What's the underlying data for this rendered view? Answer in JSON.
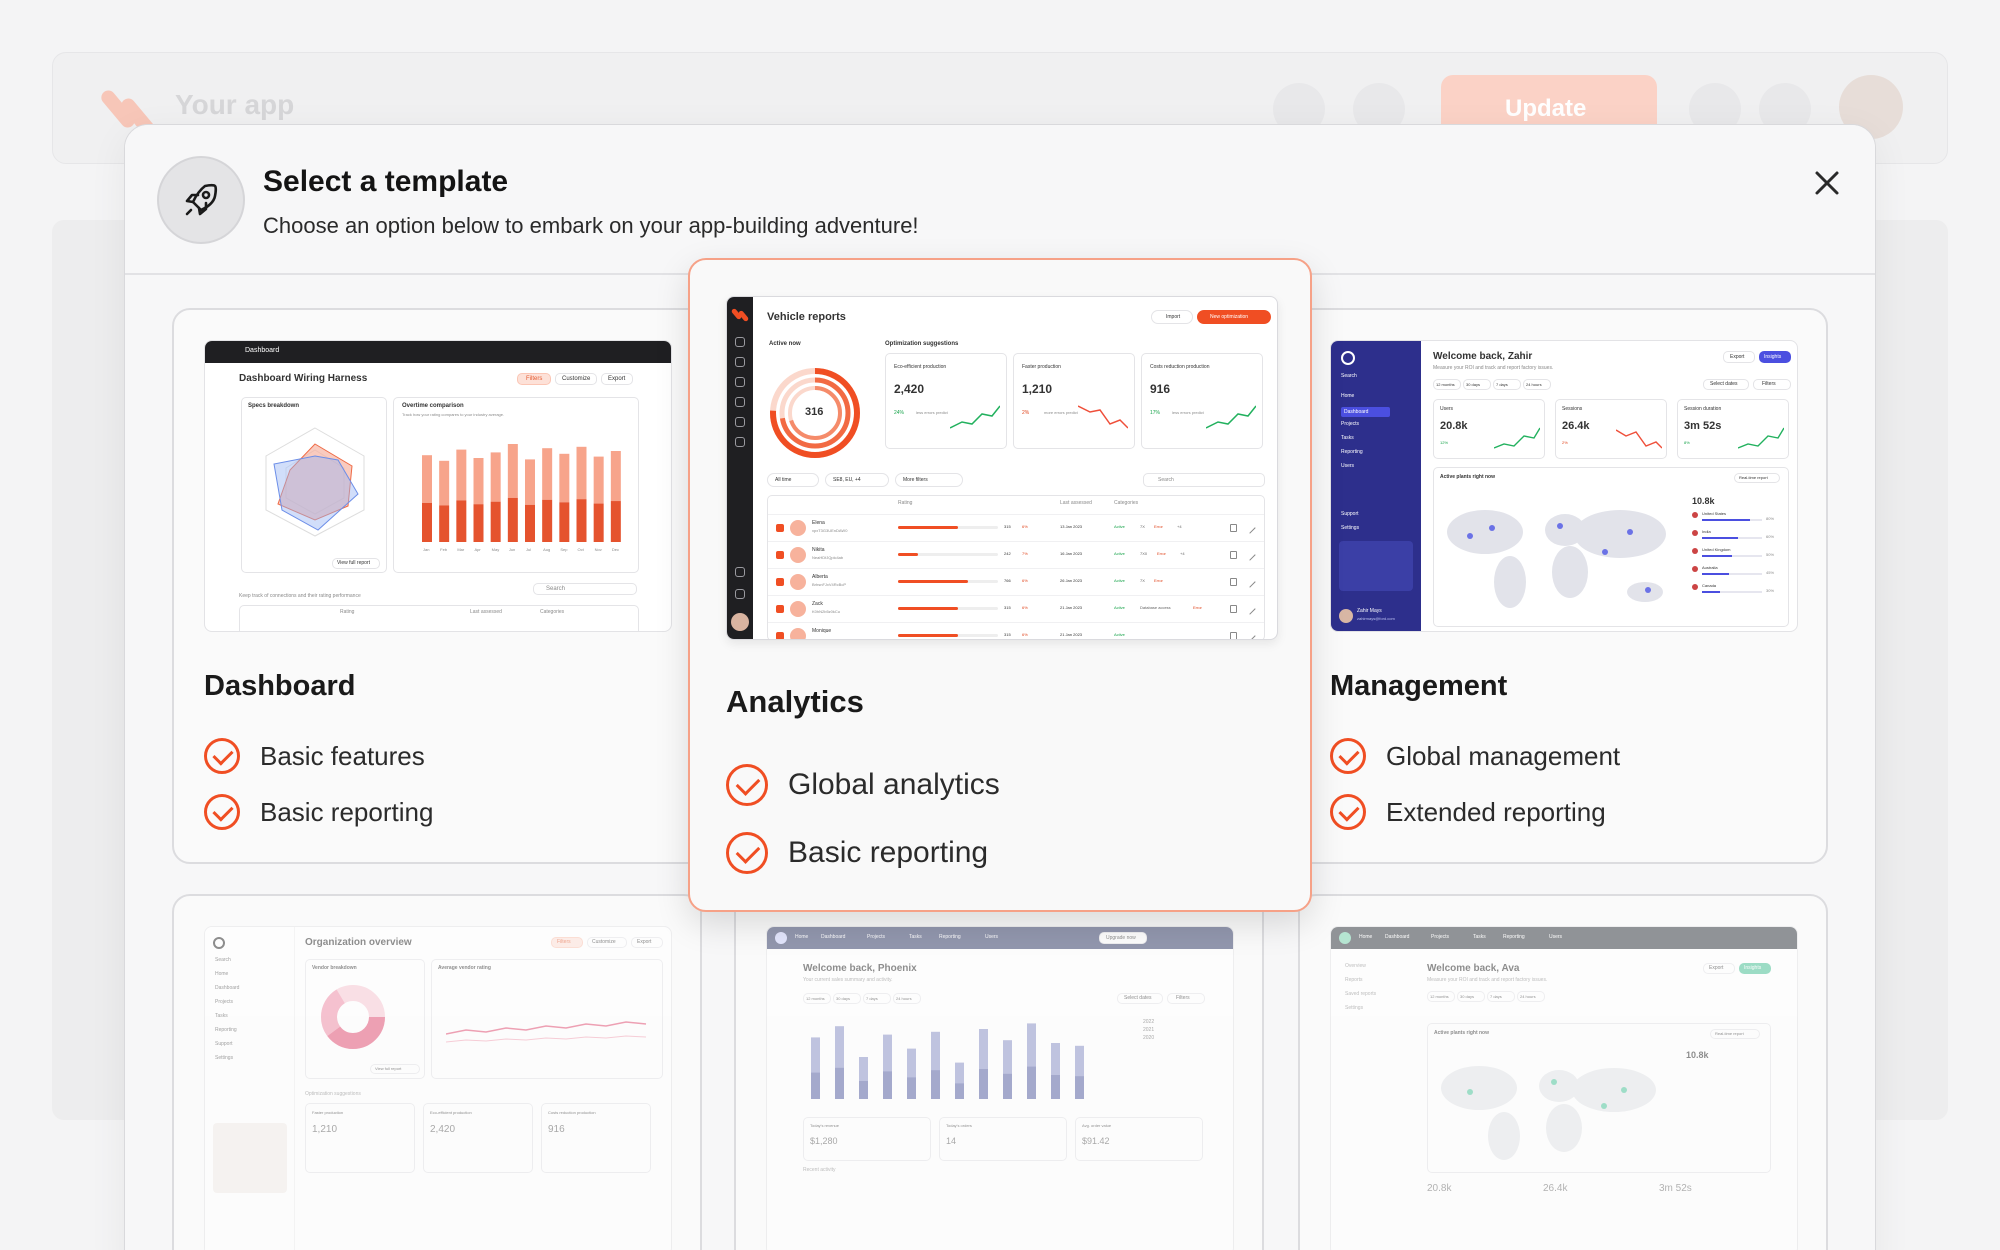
{
  "background": {
    "app_name": "Your app",
    "update_label": "Update"
  },
  "modal": {
    "title": "Select a template",
    "subtitle": "Choose an option below to embark on your app-building adventure!"
  },
  "templates": [
    {
      "name": "Dashboard",
      "features": [
        "Basic features",
        "Basic reporting"
      ],
      "preview": {
        "window_title": "Dashboard",
        "page_title": "Dashboard Wiring Harness",
        "filter_labels": [
          "Filters",
          "Customize",
          "Export"
        ],
        "panel_left": "Specs breakdown",
        "panel_right": "Overtime comparison",
        "panel_right_sub": "Track how your rating compares to your industry average.",
        "legend": [
          "Your rating",
          "Industry Average"
        ],
        "bar_values": [
          62,
          58,
          66,
          60,
          64,
          70,
          59,
          67,
          63,
          68,
          61,
          65
        ],
        "months": [
          "Jan",
          "Feb",
          "Mar",
          "Apr",
          "May",
          "Jun",
          "Jul",
          "Aug",
          "Sep",
          "Oct",
          "Nov",
          "Dec"
        ],
        "x_title": "Month",
        "y_title": "Security rating",
        "tier_labels": [
          "Tier 1",
          "Tier 2",
          "Tier 3",
          "Tier 4",
          "Tier 5",
          "Tier 6"
        ],
        "view_full_report": "View full report",
        "table_caption": "Keep track of connections and their rating performance",
        "search": "Search",
        "table_headers": [
          "Rating",
          "Last assessed",
          "Categories"
        ]
      }
    },
    {
      "name": "Analytics",
      "features": [
        "Global analytics",
        "Basic reporting"
      ],
      "selected": true,
      "preview": {
        "page_title": "Vehicle reports",
        "import_label": "Import",
        "new_label": "New optimization",
        "active_now_label": "Active now",
        "active_now_value": "316",
        "suggestions_label": "Optimization suggestions",
        "kpis": [
          {
            "label": "Eco-efficient production",
            "value": "2,420",
            "delta": "24%",
            "note": "less errors predict"
          },
          {
            "label": "Faster production",
            "value": "1,210",
            "delta": "2%",
            "note": "more errors predict"
          },
          {
            "label": "Costs reduction production",
            "value": "916",
            "delta": "17%",
            "note": "less errors predict"
          }
        ],
        "chips": [
          "All time",
          "SE8, EU, +4",
          "More filters"
        ],
        "search": "Search",
        "columns": [
          "Rating",
          "Last assessed",
          "Categories"
        ],
        "rows": [
          {
            "name": "Elena",
            "id": "xpxT3G3UEnDAW0",
            "score": "315",
            "delta": "6%",
            "date": "13 Jan 2023",
            "tags": [
              "Active",
              "7X",
              "Error",
              "+4"
            ]
          },
          {
            "name": "Nikita",
            "id": "NeaHDfJQplc4ab",
            "score": "242",
            "delta": "7%",
            "date": "16 Jan 2023",
            "tags": [
              "Active",
              "7X0",
              "Error",
              "+4"
            ]
          },
          {
            "name": "Alberta",
            "id": "BrhsnFJxV4RcBcP",
            "score": "766",
            "delta": "6%",
            "date": "26 Jan 2023",
            "tags": [
              "Active",
              "7X",
              "Error"
            ]
          },
          {
            "name": "Zack",
            "id": "K0hN2b5z0kCu",
            "score": "315",
            "delta": "6%",
            "date": "21 Jan 2023",
            "tags": [
              "Active",
              "Database access",
              "Error"
            ]
          },
          {
            "name": "Monique",
            "id": "",
            "score": "315",
            "delta": "6%",
            "date": "21 Jan 2023",
            "tags": [
              "Active"
            ]
          }
        ]
      }
    },
    {
      "name": "Management",
      "features": [
        "Global management",
        "Extended reporting"
      ],
      "preview": {
        "greeting": "Welcome back, Zahir",
        "sub": "Measure your ROI and track and report factory issues.",
        "export_label": "Export",
        "insights_label": "Insights",
        "ranges": [
          "12 months",
          "30 days",
          "7 days",
          "24 hours"
        ],
        "select_dates": "Select dates",
        "filters": "Filters",
        "nav": [
          "Search",
          "Home",
          "Dashboard",
          "Projects",
          "Tasks",
          "Reporting",
          "Users",
          "Support",
          "Settings"
        ],
        "kpis": [
          {
            "label": "Users",
            "value": "20.8k",
            "delta": "12%"
          },
          {
            "label": "Sessions",
            "value": "26.4k",
            "delta": "2%"
          },
          {
            "label": "Session duration",
            "value": "3m 52s",
            "delta": "8%"
          }
        ],
        "map_title": "Active plants right now",
        "map_button": "Real-time report",
        "map_total": "10.8k",
        "countries": [
          {
            "name": "United States",
            "pct": 80
          },
          {
            "name": "India",
            "pct": 60
          },
          {
            "name": "United Kingdom",
            "pct": 50
          },
          {
            "name": "Australia",
            "pct": 45
          },
          {
            "name": "Canada",
            "pct": 30
          }
        ],
        "user_name": "Zahir Mays",
        "user_email": "zahirmays@ford.com"
      }
    },
    {
      "name": "Organization overview",
      "preview": {
        "page_title": "Organization overview",
        "filter_labels": [
          "Filters",
          "Customize",
          "Export"
        ],
        "panel_left": "Vendor breakdown",
        "panel_right": "Average vendor rating",
        "legend": [
          "Your rating",
          "Industry Average"
        ],
        "view_full_report": "View full report",
        "section": "Optimization suggestions",
        "kpis": [
          {
            "label": "Faster production",
            "value": "1,210"
          },
          {
            "label": "Eco-efficient production",
            "value": "2,420"
          },
          {
            "label": "Costs reduction production",
            "value": "916"
          }
        ],
        "nav": [
          "Search",
          "Home",
          "Dashboard",
          "Projects",
          "Tasks",
          "Reporting",
          "Support",
          "Settings"
        ]
      }
    },
    {
      "name": "Welcome back, Phoenix",
      "preview": {
        "greeting": "Welcome back, Phoenix",
        "sub": "Your current sales summary and activity.",
        "nav": [
          "Home",
          "Dashboard",
          "Projects",
          "Tasks",
          "Reporting",
          "Users"
        ],
        "upgrade": "Upgrade now",
        "ranges": [
          "12 months",
          "30 days",
          "7 days",
          "24 hours"
        ],
        "select_dates": "Select dates",
        "filters": "Filters",
        "bar_values": [
          44,
          52,
          30,
          46,
          36,
          48,
          26,
          50,
          42,
          54,
          40,
          38
        ],
        "legend": [
          "2022",
          "2021",
          "2020"
        ],
        "kpis": [
          {
            "label": "Today's revenue",
            "value": "$1,280"
          },
          {
            "label": "Today's orders",
            "value": "14"
          },
          {
            "label": "Avg. order value",
            "value": "$91.42"
          }
        ],
        "recent": "Recent activity"
      }
    },
    {
      "name": "Welcome back, Ava",
      "preview": {
        "greeting": "Welcome back, Ava",
        "sub": "Measure your ROI and track and report factory issues.",
        "nav": [
          "Home",
          "Dashboard",
          "Projects",
          "Tasks",
          "Reporting",
          "Users"
        ],
        "side_nav": [
          "Overview",
          "Reports",
          "Saved reports",
          "Settings"
        ],
        "export_label": "Export",
        "insights_label": "Insights",
        "ranges": [
          "12 months",
          "30 days",
          "7 days",
          "24 hours"
        ],
        "select_dates": "Select dates",
        "filters": "Filters",
        "map_title": "Active plants right now",
        "map_button": "Real-time report",
        "map_total": "10.8k",
        "kpis": [
          "20.8k",
          "26.4k",
          "3m 52s"
        ]
      }
    }
  ]
}
